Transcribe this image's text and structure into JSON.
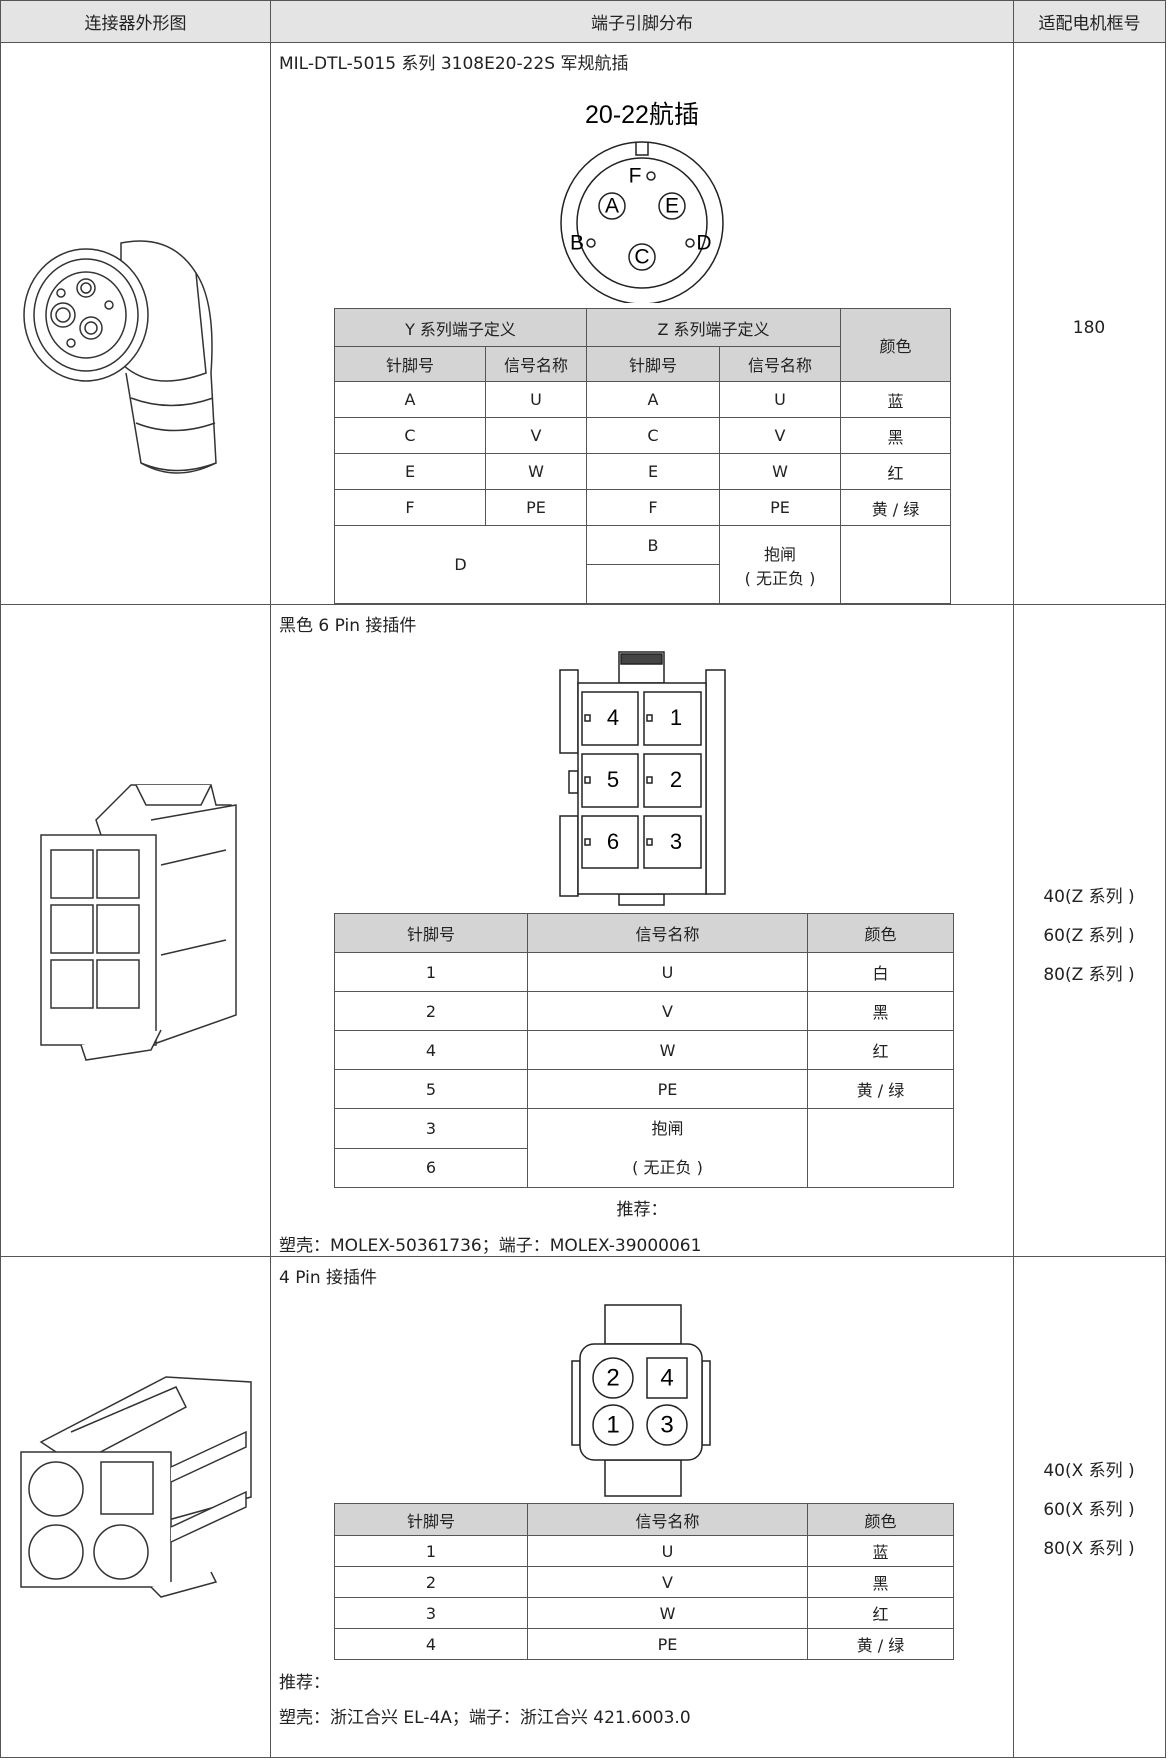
{
  "header": {
    "columns": [
      "连接器外形图",
      "端子引脚分布",
      "适配电机框号"
    ]
  },
  "rows": [
    {
      "caption": "MIL-DTL-5015 系列 3108E20-22S 军规航插",
      "diagram": {
        "title": "20-22航插",
        "pins": [
          "F",
          "A",
          "E",
          "B",
          "C",
          "D"
        ]
      },
      "table": {
        "group_headers": [
          "Y 系列端子定义",
          "Z 系列端子定义",
          "颜色"
        ],
        "headers": [
          "针脚号",
          "信号名称",
          "针脚号",
          "信号名称"
        ],
        "rows": [
          [
            "A",
            "U",
            "A",
            "U",
            "蓝"
          ],
          [
            "C",
            "V",
            "C",
            "V",
            "黑"
          ],
          [
            "E",
            "W",
            "E",
            "W",
            "红"
          ],
          [
            "F",
            "PE",
            "F",
            "PE",
            "黄 / 绿"
          ]
        ],
        "extra": {
          "y_pin": "D",
          "z_pin": "B",
          "z_signal": [
            "抱闸",
            "( 无正负 )"
          ]
        }
      },
      "frames": [
        "180"
      ]
    },
    {
      "caption": "黑色 6 Pin 接插件",
      "diagram": {
        "pins": [
          "4",
          "1",
          "5",
          "2",
          "6",
          "3"
        ]
      },
      "table": {
        "headers": [
          "针脚号",
          "信号名称",
          "颜色"
        ],
        "rows": [
          [
            "1",
            "U",
            "白"
          ],
          [
            "2",
            "V",
            "黑"
          ],
          [
            "4",
            "W",
            "红"
          ],
          [
            "5",
            "PE",
            "黄 / 绿"
          ]
        ],
        "extra": {
          "pins": [
            "3",
            "6"
          ],
          "signal": [
            "抱闸",
            "( 无正负 )"
          ]
        }
      },
      "notes": [
        "推荐：",
        "塑壳：MOLEX-50361736；端子：MOLEX-39000061"
      ],
      "frames": [
        "40(Z 系列 )",
        "60(Z 系列 )",
        "80(Z 系列 )"
      ]
    },
    {
      "caption": "4 Pin 接插件",
      "diagram": {
        "pins": [
          "2",
          "4",
          "1",
          "3"
        ]
      },
      "table": {
        "headers": [
          "针脚号",
          "信号名称",
          "颜色"
        ],
        "rows": [
          [
            "1",
            "U",
            "蓝"
          ],
          [
            "2",
            "V",
            "黑"
          ],
          [
            "3",
            "W",
            "红"
          ],
          [
            "4",
            "PE",
            "黄 / 绿"
          ]
        ]
      },
      "notes": [
        "推荐：",
        "塑壳：浙江合兴 EL-4A；端子：浙江合兴 421.6003.0"
      ],
      "frames": [
        "40(X 系列 )",
        "60(X 系列 )",
        "80(X 系列 )"
      ]
    }
  ]
}
